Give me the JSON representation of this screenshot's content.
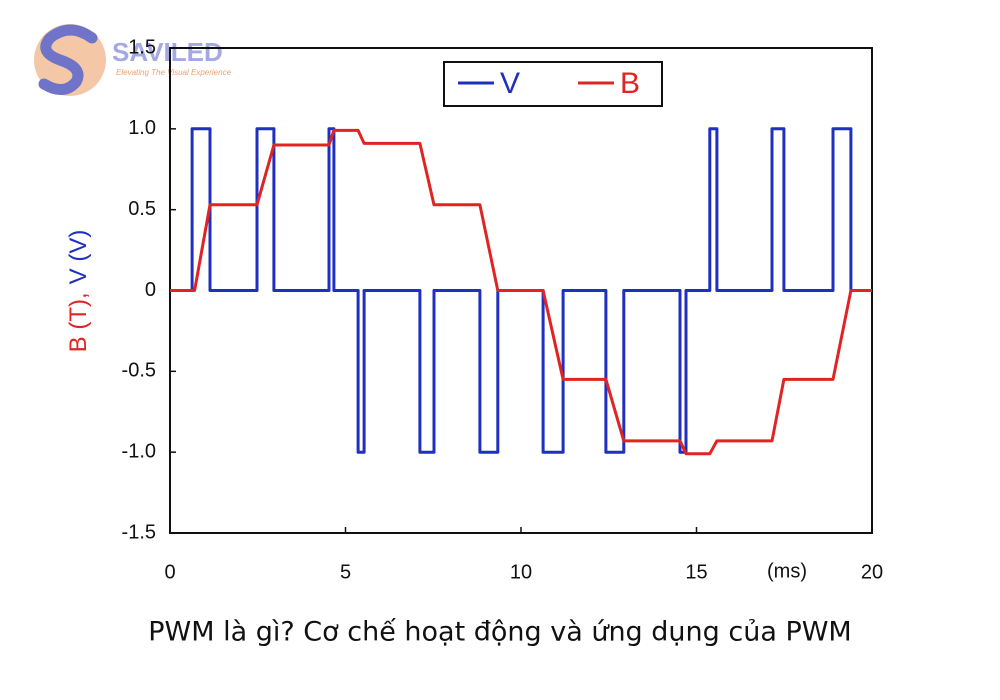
{
  "logo": {
    "name": "SAVILED",
    "tagline": "Elevating The Visual Experience"
  },
  "caption": "PWM là gì? Cơ chế hoạt động và ứng dụng của PWM",
  "chart_data": {
    "type": "line",
    "ylabel_parts": [
      "B (T),",
      "V (V)"
    ],
    "x_unit_label": "(ms)",
    "xlim": [
      0,
      20
    ],
    "xticks": [
      0,
      5,
      10,
      15,
      20
    ],
    "ylim": [
      -1.5,
      1.5
    ],
    "yticks": [
      -1.5,
      {
        "value": -1.0,
        "label": "-1.0"
      },
      -0.5,
      0,
      0.5,
      {
        "value": 1.0,
        "label": "1.0"
      },
      1.5
    ],
    "legend": "top",
    "series": [
      {
        "name": "V",
        "color": "#1f2fbf",
        "x": [
          0,
          0.63,
          0.63,
          1.14,
          1.14,
          2.48,
          2.48,
          2.96,
          2.96,
          4.53,
          4.53,
          4.67,
          4.67,
          5.36,
          5.36,
          5.53,
          5.53,
          7.12,
          7.12,
          7.52,
          7.52,
          8.83,
          8.83,
          9.34,
          9.34,
          10.63,
          10.63,
          11.2,
          11.2,
          12.42,
          12.42,
          12.93,
          12.93,
          14.53,
          14.53,
          14.7,
          14.7,
          15.38,
          15.38,
          15.58,
          15.58,
          17.15,
          17.15,
          17.49,
          17.49,
          18.89,
          18.89,
          19.4,
          19.4,
          20
        ],
        "values": [
          0,
          0,
          1,
          1,
          0,
          0,
          1,
          1,
          0,
          0,
          1,
          1,
          0,
          0,
          -1,
          -1,
          0,
          0,
          -1,
          -1,
          0,
          0,
          -1,
          -1,
          0,
          0,
          -1,
          -1,
          0,
          0,
          -1,
          -1,
          0,
          0,
          -1,
          -1,
          0,
          0,
          1,
          1,
          0,
          0,
          1,
          1,
          0,
          0,
          1,
          1,
          0,
          0
        ]
      },
      {
        "name": "B",
        "color": "#e02424",
        "x": [
          0,
          0.7,
          1.14,
          2.48,
          2.96,
          4.53,
          4.67,
          5.36,
          5.53,
          7.12,
          7.52,
          8.83,
          9.34,
          10.63,
          11.2,
          12.42,
          12.93,
          14.53,
          14.7,
          15.38,
          15.58,
          17.15,
          17.49,
          18.89,
          19.4,
          20
        ],
        "values": [
          0,
          0,
          0.53,
          0.53,
          0.9,
          0.9,
          0.99,
          0.99,
          0.91,
          0.91,
          0.53,
          0.53,
          0,
          0,
          -0.55,
          -0.55,
          -0.93,
          -0.93,
          -1.01,
          -1.01,
          -0.93,
          -0.93,
          -0.55,
          -0.55,
          0,
          0
        ]
      }
    ]
  }
}
